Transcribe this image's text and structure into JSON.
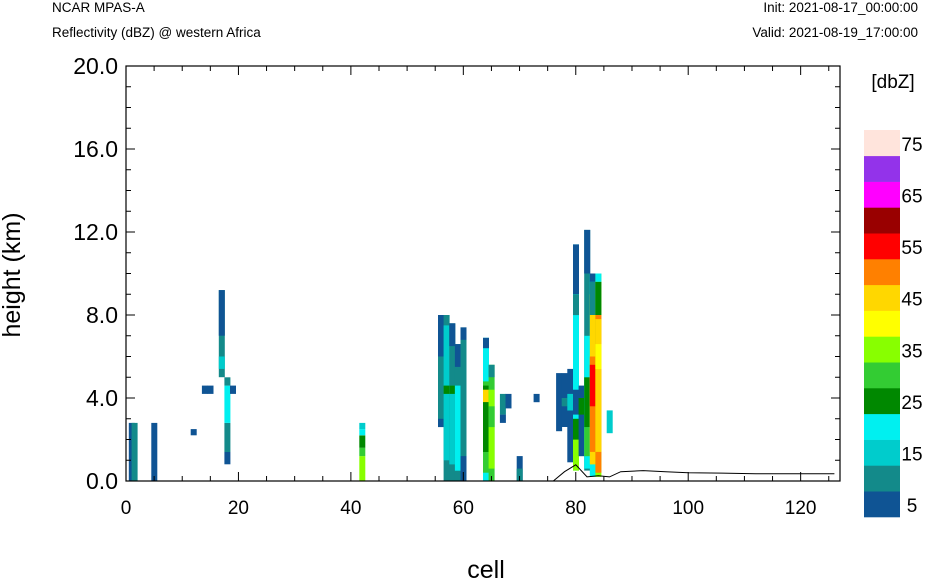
{
  "header": {
    "model": "NCAR MPAS-A",
    "field": "Reflectivity (dBZ) @ western Africa",
    "init": "Init: 2021-08-17_00:00:00",
    "valid": "Valid: 2021-08-19_17:00:00"
  },
  "chart_data": {
    "type": "heatmap",
    "title": "Reflectivity (dBZ) @ western Africa",
    "xlabel": "cell",
    "ylabel": "height (km)",
    "xlim": [
      0,
      127
    ],
    "ylim": [
      0,
      20
    ],
    "x_ticks": [
      0,
      20,
      40,
      60,
      80,
      100,
      120
    ],
    "y_ticks": [
      "0.0",
      "4.0",
      "8.0",
      "12.0",
      "16.0",
      "20.0"
    ],
    "grid": false,
    "colorbar": {
      "title": "[dbZ]",
      "levels": [
        5,
        10,
        15,
        20,
        25,
        30,
        35,
        40,
        45,
        50,
        55,
        60,
        65,
        70,
        75
      ],
      "labels": [
        "5",
        "15",
        "25",
        "35",
        "45",
        "55",
        "65",
        "75"
      ],
      "colors": [
        "#0f5494",
        "#138a8a",
        "#00cccc",
        "#00f0f0",
        "#008800",
        "#33cc33",
        "#88ff00",
        "#ffff00",
        "#ffd700",
        "#ff8000",
        "#ff0000",
        "#990000",
        "#ff00ff",
        "#9333ea",
        "#ffe4dc"
      ]
    },
    "terrain_km": [
      [
        0,
        0.0
      ],
      [
        76,
        0.0
      ],
      [
        78,
        0.45
      ],
      [
        80,
        0.78
      ],
      [
        82,
        0.2
      ],
      [
        84,
        0.25
      ],
      [
        86,
        0.2
      ],
      [
        88,
        0.45
      ],
      [
        92,
        0.5
      ],
      [
        96,
        0.45
      ],
      [
        100,
        0.4
      ],
      [
        106,
        0.38
      ],
      [
        112,
        0.35
      ],
      [
        118,
        0.35
      ],
      [
        126,
        0.35
      ]
    ],
    "columns": [
      {
        "cell": 1,
        "cells": [
          [
            0,
            2.8,
            5
          ]
        ]
      },
      {
        "cell": 1.5,
        "cells": [
          [
            0,
            2.8,
            10
          ]
        ]
      },
      {
        "cell": 5,
        "cells": [
          [
            0,
            2.8,
            5
          ]
        ]
      },
      {
        "cell": 12,
        "cells": [
          [
            2.2,
            2.5,
            5
          ]
        ]
      },
      {
        "cell": 14,
        "cells": [
          [
            4.2,
            4.6,
            5
          ]
        ]
      },
      {
        "cell": 15,
        "cells": [
          [
            4.2,
            4.6,
            5
          ]
        ]
      },
      {
        "cell": 17,
        "cells": [
          [
            5.0,
            9.2,
            10
          ],
          [
            5.4,
            6.0,
            15
          ],
          [
            7.0,
            9.2,
            5
          ]
        ]
      },
      {
        "cell": 18,
        "cells": [
          [
            0.8,
            1.4,
            5
          ],
          [
            1.4,
            2.8,
            10
          ],
          [
            2.8,
            4.6,
            20
          ],
          [
            4.6,
            5.0,
            10
          ]
        ]
      },
      {
        "cell": 19,
        "cells": [
          [
            4.2,
            4.6,
            5
          ]
        ]
      },
      {
        "cell": 42,
        "cells": [
          [
            0,
            1.2,
            35
          ],
          [
            1.2,
            1.6,
            30
          ],
          [
            1.6,
            2.2,
            25
          ],
          [
            2.2,
            2.5,
            20
          ],
          [
            2.5,
            2.8,
            15
          ]
        ]
      },
      {
        "cell": 56,
        "cells": [
          [
            2.6,
            8.0,
            5
          ],
          [
            3.0,
            6.0,
            10
          ]
        ]
      },
      {
        "cell": 57,
        "cells": [
          [
            0,
            8.0,
            10
          ],
          [
            1.0,
            7.5,
            15
          ],
          [
            4.2,
            4.6,
            25
          ]
        ]
      },
      {
        "cell": 58,
        "cells": [
          [
            0,
            7.6,
            10
          ],
          [
            0.8,
            4.6,
            15
          ],
          [
            4.2,
            4.6,
            25
          ],
          [
            6.5,
            7.6,
            5
          ]
        ]
      },
      {
        "cell": 59,
        "cells": [
          [
            0,
            6.6,
            10
          ],
          [
            0.5,
            4.6,
            20
          ],
          [
            5.5,
            6.6,
            5
          ]
        ]
      },
      {
        "cell": 60,
        "cells": [
          [
            0,
            7.4,
            10
          ],
          [
            0,
            1.2,
            5
          ],
          [
            6.8,
            7.4,
            5
          ]
        ]
      },
      {
        "cell": 64,
        "cells": [
          [
            0,
            6.9,
            20
          ],
          [
            0.4,
            4.8,
            30
          ],
          [
            1.4,
            4.6,
            25
          ],
          [
            3.8,
            4.4,
            45
          ],
          [
            6.4,
            6.9,
            5
          ]
        ]
      },
      {
        "cell": 65,
        "cells": [
          [
            0,
            5.6,
            30
          ],
          [
            0.6,
            4.4,
            35
          ],
          [
            2.6,
            3.6,
            30
          ],
          [
            5.0,
            5.6,
            10
          ]
        ]
      },
      {
        "cell": 67,
        "cells": [
          [
            3.2,
            4.2,
            10
          ],
          [
            2.8,
            3.2,
            5
          ]
        ]
      },
      {
        "cell": 68,
        "cells": [
          [
            3.5,
            4.2,
            5
          ]
        ]
      },
      {
        "cell": 70,
        "cells": [
          [
            0,
            1.2,
            5
          ],
          [
            0,
            0.6,
            10
          ]
        ]
      },
      {
        "cell": 73,
        "cells": [
          [
            3.8,
            4.2,
            5
          ]
        ]
      },
      {
        "cell": 77,
        "cells": [
          [
            2.4,
            5.2,
            5
          ]
        ]
      },
      {
        "cell": 78,
        "cells": [
          [
            2.6,
            5.2,
            5
          ],
          [
            3.6,
            4.0,
            10
          ]
        ]
      },
      {
        "cell": 79,
        "cells": [
          [
            0.9,
            5.4,
            5
          ],
          [
            3.4,
            4.2,
            15
          ]
        ]
      },
      {
        "cell": 80,
        "cells": [
          [
            0.5,
            11.4,
            20
          ],
          [
            0.5,
            2.0,
            35
          ],
          [
            2.0,
            3.0,
            25
          ],
          [
            9.0,
            11.4,
            5
          ],
          [
            8.0,
            9.0,
            10
          ],
          [
            3.2,
            4.4,
            5
          ]
        ]
      },
      {
        "cell": 81,
        "cells": [
          [
            1.2,
            4.6,
            5
          ],
          [
            3.2,
            4.0,
            25
          ]
        ]
      },
      {
        "cell": 82,
        "cells": [
          [
            0.5,
            12.1,
            10
          ],
          [
            0.6,
            7.0,
            20
          ],
          [
            1.2,
            2.6,
            30
          ],
          [
            2.6,
            5.0,
            25
          ],
          [
            10.0,
            12.1,
            5
          ]
        ]
      },
      {
        "cell": 83,
        "cells": [
          [
            0.2,
            10.0,
            20
          ],
          [
            0.8,
            9.0,
            45
          ],
          [
            1.4,
            6.0,
            50
          ],
          [
            3.6,
            5.6,
            55
          ],
          [
            8.0,
            9.6,
            10
          ],
          [
            9.6,
            10.0,
            5
          ]
        ]
      },
      {
        "cell": 84,
        "cells": [
          [
            0.2,
            10.0,
            35
          ],
          [
            0.4,
            8.0,
            50
          ],
          [
            1.4,
            7.8,
            45
          ],
          [
            5.4,
            6.6,
            40
          ],
          [
            8.0,
            9.6,
            25
          ],
          [
            9.6,
            10.0,
            20
          ]
        ]
      },
      {
        "cell": 86,
        "cells": [
          [
            2.3,
            3.4,
            15
          ]
        ]
      }
    ]
  }
}
